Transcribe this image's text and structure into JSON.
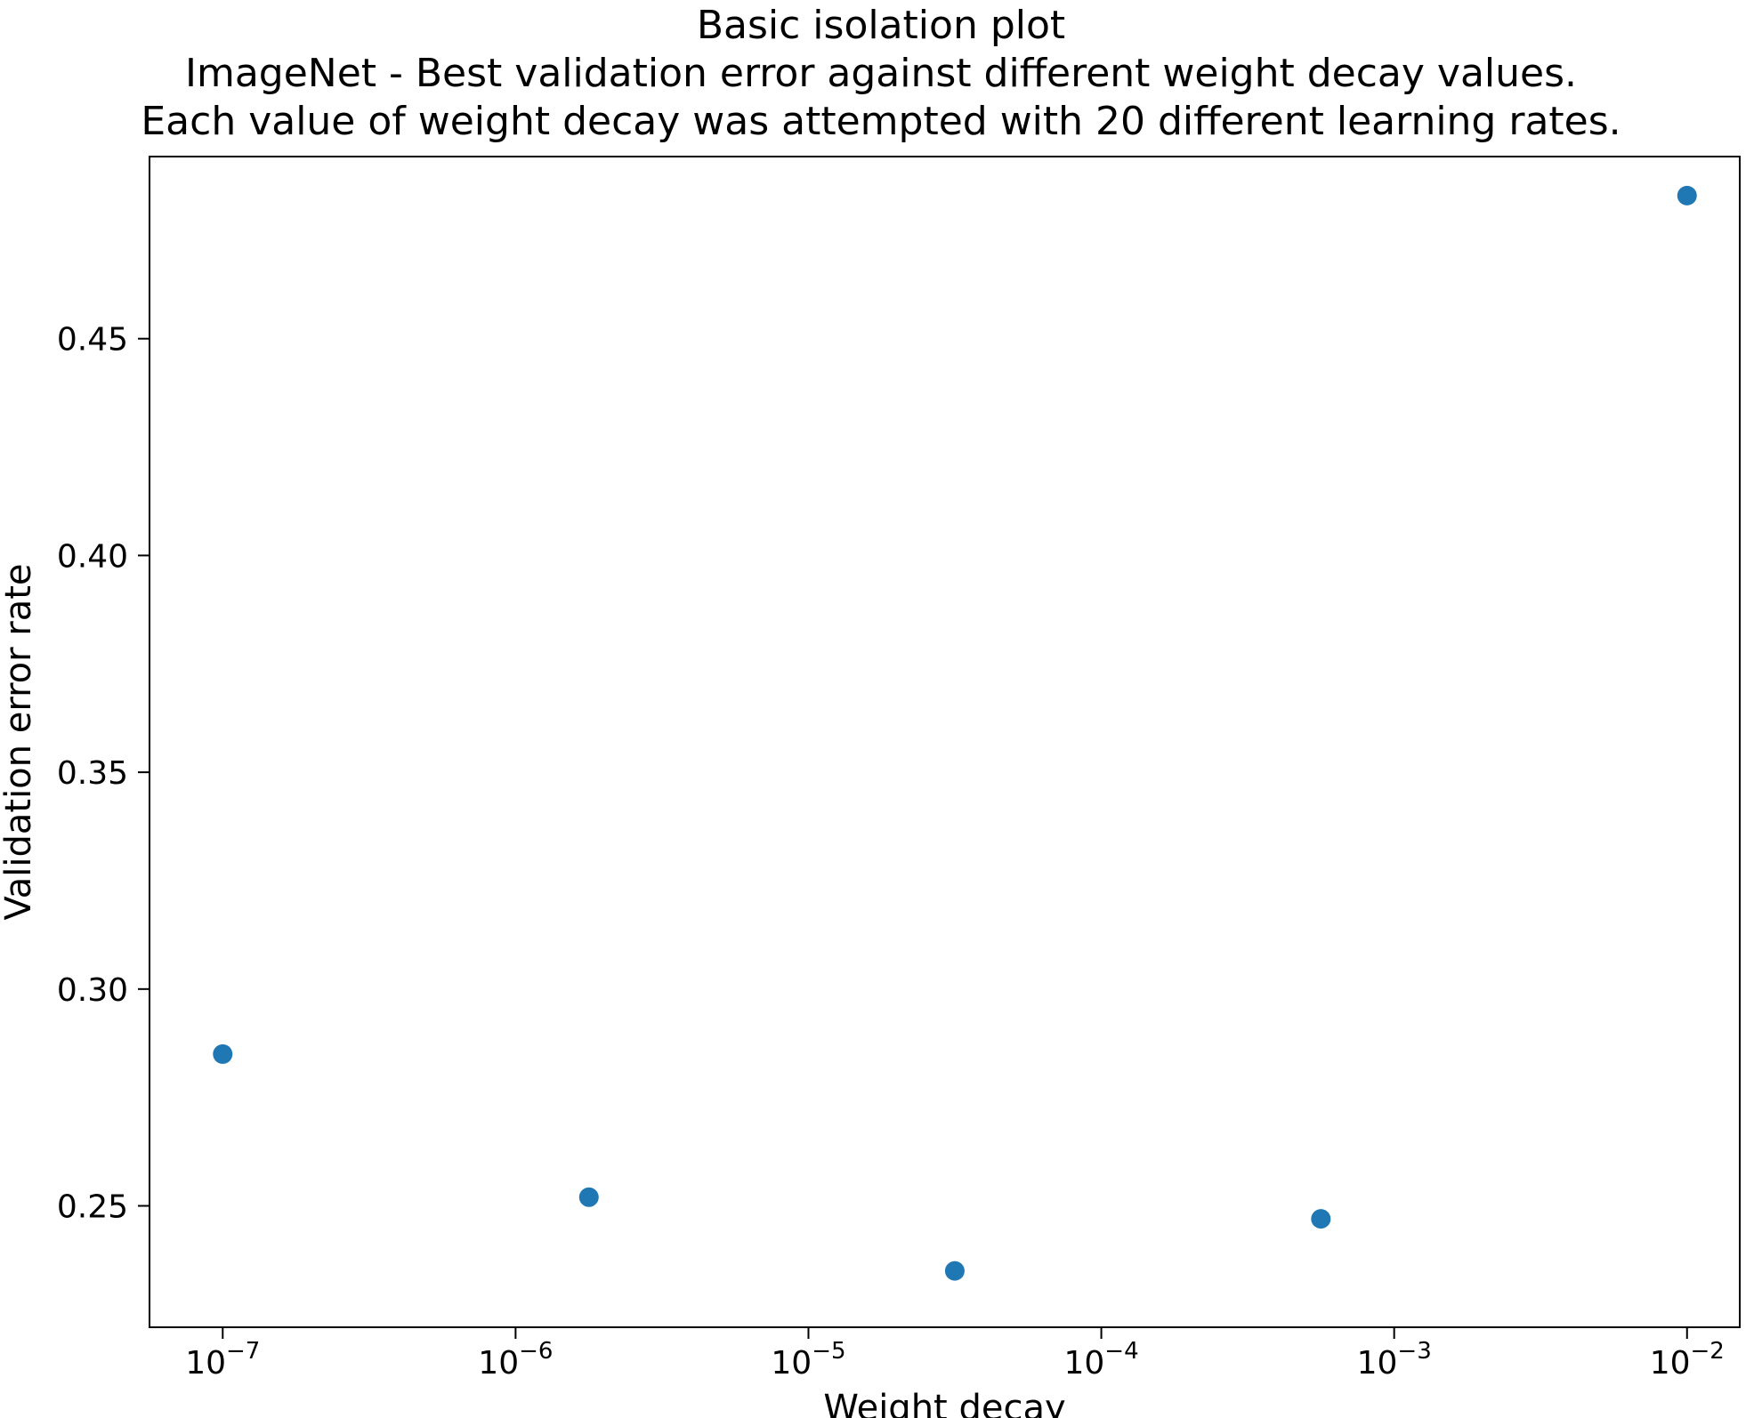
{
  "chart_data": {
    "type": "scatter",
    "title_lines": [
      "Basic isolation plot",
      "ImageNet - Best validation error against different weight decay values.",
      "Each value of weight decay was attempted with 20 different learning rates."
    ],
    "xlabel": "Weight decay",
    "ylabel": "Validation error rate",
    "x_scale": "log",
    "x": [
      1e-07,
      1.78e-06,
      3.16e-05,
      0.000562,
      0.01
    ],
    "y": [
      0.285,
      0.252,
      0.235,
      0.247,
      0.483
    ],
    "x_tick_exponents": [
      -7,
      -6,
      -5,
      -4,
      -3,
      -2
    ],
    "y_ticks": [
      0.25,
      0.3,
      0.35,
      0.4,
      0.45
    ],
    "x_log_range": [
      -7.25,
      -1.82
    ],
    "y_range": [
      0.222,
      0.492
    ],
    "marker_color": "#1f77b4",
    "axis_color": "#000000",
    "grid": false,
    "legend": "none"
  }
}
